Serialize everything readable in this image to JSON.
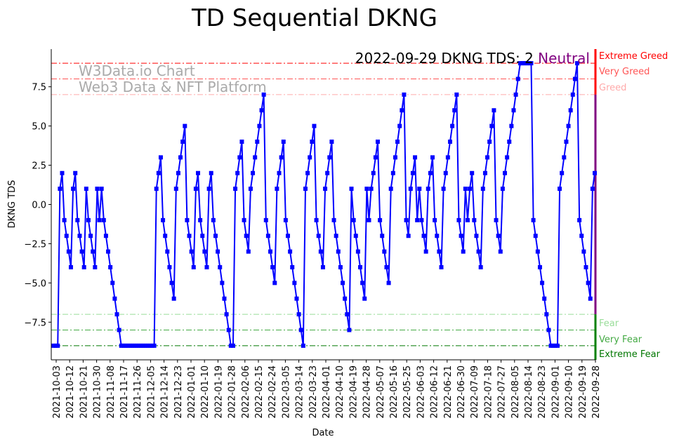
{
  "chart_data": {
    "type": "line",
    "title": "TD Sequential DKNG",
    "xlabel": "Date",
    "ylabel": "DKNG TDS",
    "ylim": [
      -9.9,
      9.9
    ],
    "yticks": [
      7.5,
      5.0,
      2.5,
      0.0,
      -2.5,
      -5.0,
      -7.5
    ],
    "ytick_labels": [
      "7.5",
      "5.0",
      "2.5",
      "0.0",
      "−2.5",
      "−5.0",
      "−7.5"
    ],
    "xticks": [
      "2021-10-03",
      "2021-10-12",
      "2021-10-21",
      "2021-10-30",
      "2021-11-08",
      "2021-11-17",
      "2021-11-26",
      "2021-12-05",
      "2021-12-14",
      "2021-12-23",
      "2022-01-01",
      "2022-01-10",
      "2022-01-19",
      "2022-01-28",
      "2022-02-06",
      "2022-02-15",
      "2022-02-24",
      "2022-03-05",
      "2022-03-14",
      "2022-03-23",
      "2022-04-01",
      "2022-04-10",
      "2022-04-19",
      "2022-04-28",
      "2022-05-07",
      "2022-05-16",
      "2022-05-25",
      "2022-06-03",
      "2022-06-12",
      "2022-06-21",
      "2022-06-30",
      "2022-07-09",
      "2022-07-18",
      "2022-07-27",
      "2022-08-05",
      "2022-08-14",
      "2022-08-23",
      "2022-09-01",
      "2022-09-10",
      "2022-09-19",
      "2022-09-28"
    ],
    "series": [
      {
        "name": "DKNG TDS",
        "color": "#0000ff",
        "values": [
          -9,
          -9,
          -9,
          1,
          2,
          -1,
          -2,
          -3,
          -4,
          1,
          2,
          -1,
          -2,
          -3,
          -4,
          1,
          -1,
          -2,
          -3,
          -4,
          1,
          -1,
          1,
          -1,
          -2,
          -3,
          -4,
          -5,
          -6,
          -7,
          -8,
          -9,
          -9,
          -9,
          -9,
          -9,
          -9,
          -9,
          -9,
          -9,
          -9,
          -9,
          -9,
          -9,
          -9,
          -9,
          -9,
          1,
          2,
          3,
          -1,
          -2,
          -3,
          -4,
          -5,
          -6,
          1,
          2,
          3,
          4,
          5,
          -1,
          -2,
          -3,
          -4,
          1,
          2,
          -1,
          -2,
          -3,
          -4,
          1,
          2,
          -1,
          -2,
          -3,
          -4,
          -5,
          -6,
          -7,
          -8,
          -9,
          -9,
          1,
          2,
          3,
          4,
          -1,
          -2,
          -3,
          1,
          2,
          3,
          4,
          5,
          6,
          7,
          -1,
          -2,
          -3,
          -4,
          -5,
          1,
          2,
          3,
          4,
          -1,
          -2,
          -3,
          -4,
          -5,
          -6,
          -7,
          -8,
          -9,
          1,
          2,
          3,
          4,
          5,
          -1,
          -2,
          -3,
          -4,
          1,
          2,
          3,
          4,
          -1,
          -2,
          -3,
          -4,
          -5,
          -6,
          -7,
          -8,
          1,
          -1,
          -2,
          -3,
          -4,
          -5,
          -6,
          1,
          -1,
          1,
          2,
          3,
          4,
          -1,
          -2,
          -3,
          -4,
          -5,
          1,
          2,
          3,
          4,
          5,
          6,
          7,
          -1,
          -2,
          1,
          2,
          3,
          -1,
          1,
          -1,
          -2,
          -3,
          1,
          2,
          3,
          -1,
          -2,
          -3,
          -4,
          1,
          2,
          3,
          4,
          5,
          6,
          7,
          -1,
          -2,
          -3,
          1,
          -1,
          1,
          2,
          -1,
          -2,
          -3,
          -4,
          1,
          2,
          3,
          4,
          5,
          6,
          -1,
          -2,
          -3,
          1,
          2,
          3,
          4,
          5,
          6,
          7,
          8,
          9,
          9,
          9,
          9,
          9,
          9,
          -1,
          -2,
          -3,
          -4,
          -5,
          -6,
          -7,
          -8,
          -9,
          -9,
          -9,
          -9,
          1,
          2,
          3,
          4,
          5,
          6,
          7,
          8,
          9,
          -1,
          -2,
          -3,
          -4,
          -5,
          -6,
          1,
          2
        ]
      }
    ],
    "levels": [
      {
        "value": 9,
        "label": "Extreme Greed",
        "color": "#ff0000"
      },
      {
        "value": 8,
        "label": "Very Greed",
        "color": "#ff5555"
      },
      {
        "value": 7,
        "label": "Greed",
        "color": "#ffaaaa"
      },
      {
        "value": -7,
        "label": "Fear",
        "color": "#99dd99"
      },
      {
        "value": -8,
        "label": "Very Fear",
        "color": "#44aa44"
      },
      {
        "value": -9,
        "label": "Extreme Fear",
        "color": "#007700"
      }
    ],
    "annotation": {
      "text": "2022-09-29 DKNG TDS: 2",
      "state": "Neutral",
      "state_color": "#800080"
    },
    "watermark": [
      "W3Data.io Chart",
      "Web3 Data & NFT Platform"
    ]
  }
}
